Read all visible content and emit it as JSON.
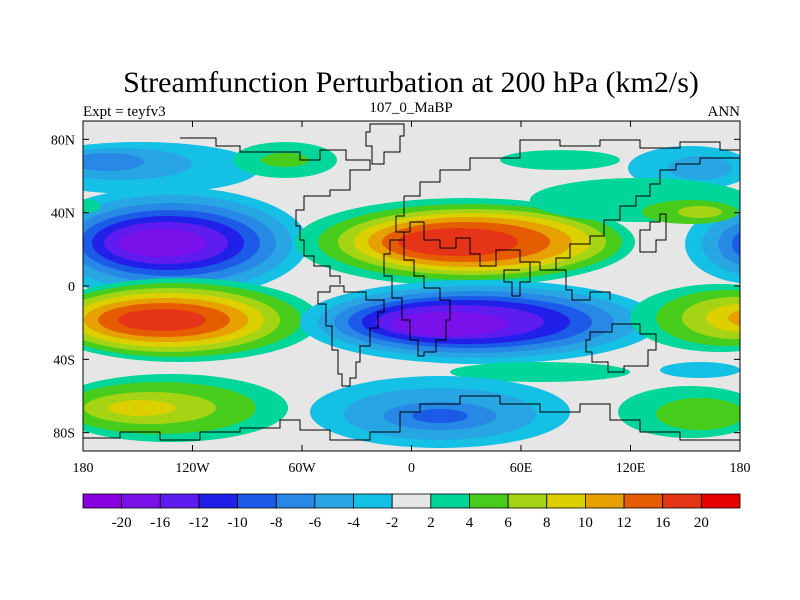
{
  "chart_data": {
    "type": "heatmap",
    "title": "Streamfunction Perturbation at 200 hPa (km2/s)",
    "left_label": "Expt = teyfv3",
    "center_label": "107_0_MaBP",
    "right_label": "ANN",
    "x_range": [
      -180,
      180
    ],
    "y_range": [
      -90,
      90
    ],
    "x_ticks": [
      {
        "value": -180,
        "label": "180"
      },
      {
        "value": -120,
        "label": "120W"
      },
      {
        "value": -60,
        "label": "60W"
      },
      {
        "value": 0,
        "label": "0"
      },
      {
        "value": 60,
        "label": "60E"
      },
      {
        "value": 120,
        "label": "120E"
      },
      {
        "value": 180,
        "label": "180"
      }
    ],
    "y_ticks": [
      {
        "value": 80,
        "label": "80N"
      },
      {
        "value": 40,
        "label": "40N"
      },
      {
        "value": 0,
        "label": "0"
      },
      {
        "value": -40,
        "label": "40S"
      },
      {
        "value": -80,
        "label": "80S"
      }
    ],
    "colorbar": {
      "labels": [
        "-20",
        "-16",
        "-12",
        "-10",
        "-8",
        "-6",
        "-4",
        "-2",
        "2",
        "4",
        "6",
        "8",
        "10",
        "12",
        "16",
        "20"
      ],
      "colors": [
        "#8a00e0",
        "#7a10ea",
        "#5e1cf0",
        "#2020e8",
        "#1c5ae8",
        "#2888e6",
        "#28a6e4",
        "#14c0e4",
        "#e6e6e6",
        "#00d69a",
        "#48cc1c",
        "#a4d414",
        "#dcd000",
        "#e6a000",
        "#e65c00",
        "#e63418",
        "#e60000"
      ]
    },
    "features": [
      {
        "name": "midlat-north-pacific-negative",
        "lon": -120,
        "lat": 25,
        "value": -18
      },
      {
        "name": "subtropical-south-pacific-positive",
        "lon": -130,
        "lat": -18,
        "value": 16
      },
      {
        "name": "asia-high-positive",
        "lon": 30,
        "lat": 22,
        "value": 16
      },
      {
        "name": "indian-ocean-negative",
        "lon": 30,
        "lat": -22,
        "value": -18
      },
      {
        "name": "west-pacific-negative",
        "lon": 175,
        "lat": 22,
        "value": -14
      },
      {
        "name": "west-pacific-south-positive",
        "lon": 170,
        "lat": -15,
        "value": 11
      },
      {
        "name": "southern-ocean-positive",
        "lon": -130,
        "lat": -65,
        "value": 8
      },
      {
        "name": "southern-ocean-negative",
        "lon": 30,
        "lat": -70,
        "value": -8
      },
      {
        "name": "arctic-negative",
        "lon": -130,
        "lat": 70,
        "value": -7
      }
    ]
  }
}
